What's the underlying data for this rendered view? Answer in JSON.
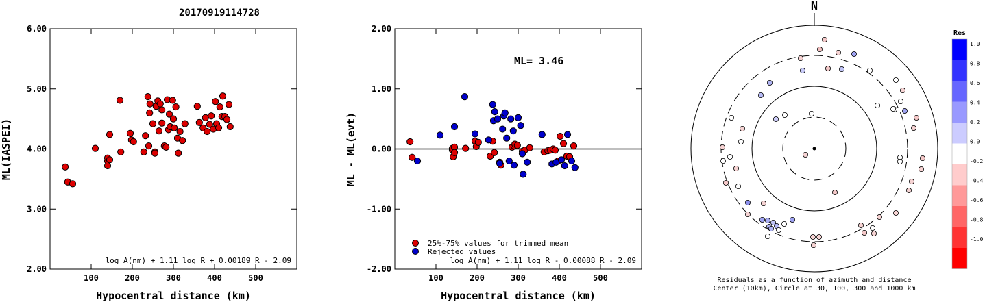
{
  "title": "20170919114728",
  "chart_data": [
    {
      "type": "scatter",
      "name": "ml-vs-distance",
      "xlabel": "Hypocentral distance (km)",
      "ylabel": "ML(IASPEI)",
      "xlim": [
        0,
        600
      ],
      "ylim": [
        2.0,
        6.0
      ],
      "xticks": [
        "100",
        "200",
        "300",
        "400",
        "500"
      ],
      "yticks": [
        "2.00",
        "3.00",
        "4.00",
        "5.00",
        "6.00"
      ],
      "formula": "log A(nm) + 1.11 log R + 0.00189 R - 2.09",
      "color": "#dd0000",
      "points": [
        [
          37,
          3.7
        ],
        [
          43,
          3.45
        ],
        [
          55,
          3.42
        ],
        [
          110,
          4.01
        ],
        [
          140,
          3.72
        ],
        [
          140,
          3.8
        ],
        [
          140,
          3.85
        ],
        [
          145,
          3.82
        ],
        [
          145,
          4.24
        ],
        [
          170,
          4.81
        ],
        [
          172,
          3.95
        ],
        [
          195,
          4.26
        ],
        [
          198,
          4.15
        ],
        [
          203,
          4.12
        ],
        [
          228,
          3.95
        ],
        [
          232,
          4.22
        ],
        [
          238,
          4.87
        ],
        [
          240,
          4.05
        ],
        [
          242,
          4.6
        ],
        [
          243,
          4.75
        ],
        [
          250,
          4.42
        ],
        [
          255,
          3.95
        ],
        [
          255,
          3.93
        ],
        [
          258,
          4.71
        ],
        [
          262,
          4.8
        ],
        [
          265,
          4.3
        ],
        [
          268,
          4.75
        ],
        [
          272,
          4.43
        ],
        [
          272,
          4.65
        ],
        [
          278,
          4.05
        ],
        [
          282,
          4.03
        ],
        [
          285,
          4.82
        ],
        [
          288,
          4.32
        ],
        [
          290,
          4.58
        ],
        [
          292,
          4.37
        ],
        [
          298,
          4.81
        ],
        [
          300,
          4.5
        ],
        [
          302,
          4.35
        ],
        [
          306,
          4.7
        ],
        [
          310,
          4.18
        ],
        [
          312,
          3.93
        ],
        [
          316,
          4.29
        ],
        [
          322,
          4.14
        ],
        [
          328,
          4.42
        ],
        [
          358,
          4.71
        ],
        [
          363,
          4.44
        ],
        [
          372,
          4.35
        ],
        [
          378,
          4.52
        ],
        [
          382,
          4.29
        ],
        [
          388,
          4.41
        ],
        [
          392,
          4.55
        ],
        [
          397,
          4.33
        ],
        [
          402,
          4.79
        ],
        [
          405,
          4.42
        ],
        [
          410,
          4.35
        ],
        [
          413,
          4.7
        ],
        [
          418,
          4.54
        ],
        [
          420,
          4.88
        ],
        [
          425,
          4.54
        ],
        [
          430,
          4.49
        ],
        [
          435,
          4.74
        ],
        [
          438,
          4.37
        ]
      ]
    },
    {
      "type": "scatter",
      "name": "residual-vs-distance",
      "xlabel": "Hypocentral distance (km)",
      "ylabel": "ML - ML(evt)",
      "xlim": [
        0,
        600
      ],
      "ylim": [
        -2.0,
        2.0
      ],
      "xticks": [
        "100",
        "200",
        "300",
        "400",
        "500"
      ],
      "yticks": [
        "-2.00",
        "-1.00",
        "0.00",
        "1.00",
        "2.00"
      ],
      "annotation": "ML= 3.46",
      "formula": "log A(nm) + 1.11 log R - 0.00088 R - 2.09",
      "legend": [
        "25%-75% values for trimmed mean",
        "Rejected values"
      ],
      "series": [
        {
          "color": "#dd0000",
          "points": [
            [
              37,
              0.12
            ],
            [
              42,
              -0.14
            ],
            [
              140,
              -0.02
            ],
            [
              140,
              0.01
            ],
            [
              142,
              -0.13
            ],
            [
              145,
              0.03
            ],
            [
              145,
              -0.06
            ],
            [
              172,
              0.01
            ],
            [
              195,
              0.13
            ],
            [
              198,
              0.04
            ],
            [
              203,
              0.11
            ],
            [
              232,
              -0.12
            ],
            [
              238,
              0.13
            ],
            [
              242,
              -0.06
            ],
            [
              255,
              -0.22
            ],
            [
              258,
              -0.27
            ],
            [
              285,
              0.03
            ],
            [
              290,
              0.05
            ],
            [
              292,
              0.08
            ],
            [
              298,
              0.06
            ],
            [
              310,
              -0.04
            ],
            [
              316,
              -0.02
            ],
            [
              328,
              0.02
            ],
            [
              363,
              -0.05
            ],
            [
              372,
              -0.03
            ],
            [
              378,
              -0.02
            ],
            [
              385,
              0.0
            ],
            [
              390,
              -0.02
            ],
            [
              397,
              -0.2
            ],
            [
              402,
              0.21
            ],
            [
              410,
              0.09
            ],
            [
              418,
              -0.12
            ],
            [
              425,
              -0.13
            ],
            [
              435,
              0.05
            ]
          ]
        },
        {
          "color": "#0000cc",
          "points": [
            [
              55,
              -0.2
            ],
            [
              110,
              0.23
            ],
            [
              145,
              0.37
            ],
            [
              170,
              0.87
            ],
            [
              195,
              0.25
            ],
            [
              228,
              0.15
            ],
            [
              238,
              0.74
            ],
            [
              240,
              0.47
            ],
            [
              243,
              0.62
            ],
            [
              250,
              0.5
            ],
            [
              255,
              -0.24
            ],
            [
              262,
              0.33
            ],
            [
              265,
              0.55
            ],
            [
              268,
              0.6
            ],
            [
              272,
              0.18
            ],
            [
              278,
              -0.2
            ],
            [
              282,
              0.5
            ],
            [
              288,
              0.3
            ],
            [
              290,
              -0.27
            ],
            [
              300,
              0.52
            ],
            [
              306,
              0.39
            ],
            [
              310,
              -0.08
            ],
            [
              312,
              -0.42
            ],
            [
              322,
              -0.22
            ],
            [
              358,
              0.24
            ],
            [
              382,
              -0.25
            ],
            [
              392,
              -0.22
            ],
            [
              405,
              -0.18
            ],
            [
              413,
              -0.28
            ],
            [
              420,
              0.24
            ],
            [
              430,
              -0.2
            ],
            [
              438,
              -0.31
            ]
          ]
        }
      ]
    },
    {
      "type": "scatter",
      "name": "azimuth-residuals",
      "north": "N",
      "caption": [
        "Residuals as a function of azimuth and distance",
        "Center (10km), Circle at 30, 100, 300 and 1000 km"
      ],
      "colorbar": {
        "title": "Res",
        "labels": [
          "1.0",
          "0.8",
          "0.6",
          "0.4",
          "0.2",
          "0.0",
          "-0.2",
          "-0.4",
          "-0.6",
          "-0.8",
          "-1.0"
        ],
        "colors": [
          "#0000ff",
          "#3333ff",
          "#6666ff",
          "#9999ff",
          "#ccccff",
          "#ffffff",
          "#ffcccc",
          "#ff9999",
          "#ff6666",
          "#ff3333",
          "#ff0000"
        ]
      },
      "points": [
        [
          160,
          85,
          "#f6d3d3"
        ],
        [
          188,
          72,
          "#f2c0c0"
        ],
        [
          195,
          58,
          "#f4c8c8"
        ],
        [
          215,
          77,
          "#f6d3d3"
        ],
        [
          238,
          79,
          "#9fa3f2"
        ],
        [
          200,
          100,
          "#f2c8c8"
        ],
        [
          163,
          103,
          "#c8cbf8"
        ],
        [
          220,
          101,
          "#c0c4f6"
        ],
        [
          261,
          103,
          "#ffffff"
        ],
        [
          299,
          117,
          "#ffffff"
        ],
        [
          115,
          121,
          "#b0b4f4"
        ],
        [
          309,
          132,
          "#f6d3d3"
        ],
        [
          102,
          139,
          "#b8bbf6"
        ],
        [
          272,
          154,
          "#ffffff"
        ],
        [
          306,
          148,
          "#ffffff"
        ],
        [
          297,
          160,
          "#ffffff"
        ],
        [
          312,
          162,
          "#a0a4f2"
        ],
        [
          295,
          159,
          "#ffffff"
        ],
        [
          137,
          168,
          "#ffffff"
        ],
        [
          176,
          166,
          "#ffffff"
        ],
        [
          59,
          172,
          "#ffffff"
        ],
        [
          124,
          174,
          "#ccccf8"
        ],
        [
          329,
          172,
          "#f4c8c8"
        ],
        [
          75,
          188,
          "#f6d3d3"
        ],
        [
          325,
          187,
          "#f6d3d3"
        ],
        [
          73,
          207,
          "#ffffff"
        ],
        [
          46,
          215,
          "#f6d3d3"
        ],
        [
          57,
          229,
          "#ffffff"
        ],
        [
          305,
          230,
          "#ffffff"
        ],
        [
          305,
          236,
          "#ffffff"
        ],
        [
          338,
          231,
          "#f4c8c8"
        ],
        [
          47,
          235,
          "#ffffff"
        ],
        [
          167,
          226,
          "#f6d3d3"
        ],
        [
          66,
          246,
          "#f6d3d3"
        ],
        [
          336,
          247,
          "#f6d3d3"
        ],
        [
          69,
          272,
          "#ffffff"
        ],
        [
          51,
          267,
          "#f4c8c8"
        ],
        [
          322,
          265,
          "#f6d3d3"
        ],
        [
          318,
          278,
          "#f6d3d3"
        ],
        [
          210,
          281,
          "#f4c8c8"
        ],
        [
          83,
          296,
          "#8c90ee"
        ],
        [
          106,
          297,
          "#f6d3d3"
        ],
        [
          83,
          313,
          "#f6d3d3"
        ],
        [
          104,
          321,
          "#9ea2f2"
        ],
        [
          112,
          322,
          "#aaaef4"
        ],
        [
          114,
          331,
          "#b0b4f4"
        ],
        [
          120,
          325,
          "#c0c4f6"
        ],
        [
          125,
          330,
          "#b8bbf6"
        ],
        [
          136,
          327,
          "#ffffff"
        ],
        [
          148,
          321,
          "#9ea2f2"
        ],
        [
          299,
          311,
          "#f6d3d3"
        ],
        [
          275,
          317,
          "#f6d3d3"
        ],
        [
          248,
          329,
          "#f6d3d3"
        ],
        [
          265,
          333,
          "#ffffff"
        ],
        [
          178,
          346,
          "#f6d3d3"
        ],
        [
          187,
          346,
          "#f6d3d3"
        ],
        [
          179,
          358,
          "#f6d3d3"
        ],
        [
          253,
          340,
          "#f4c8c8"
        ],
        [
          267,
          341,
          "#f6d3d3"
        ],
        [
          128,
          336,
          "#ffffff"
        ],
        [
          117,
          334,
          "#b0b4f4"
        ],
        [
          112,
          345,
          "#ffffff"
        ]
      ]
    }
  ]
}
